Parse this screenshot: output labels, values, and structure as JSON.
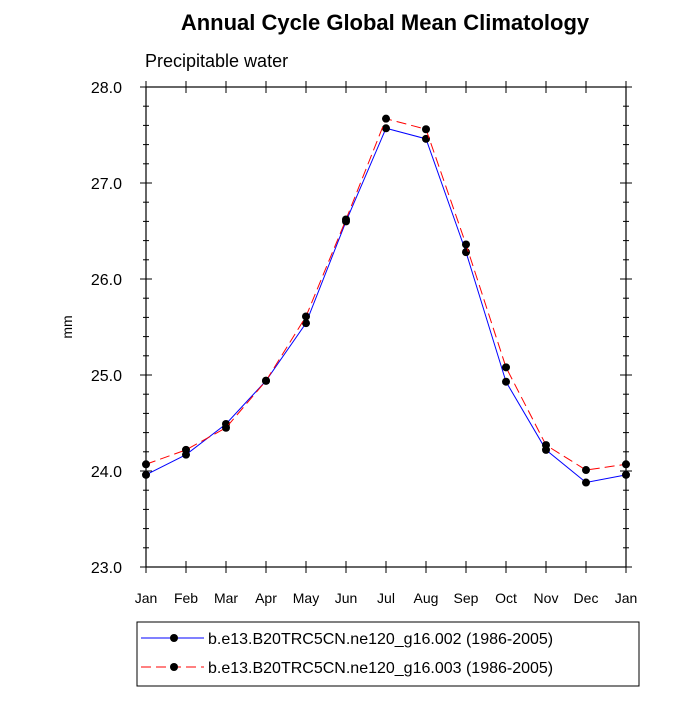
{
  "chart_data": {
    "type": "line",
    "title": "Annual Cycle Global Mean Climatology",
    "subtitle": "Precipitable water",
    "xlabel": "",
    "ylabel": "mm",
    "categories": [
      "Jan",
      "Feb",
      "Mar",
      "Apr",
      "May",
      "Jun",
      "Jul",
      "Aug",
      "Sep",
      "Oct",
      "Nov",
      "Dec",
      "Jan"
    ],
    "ylim": [
      23.0,
      28.0
    ],
    "yticks": [
      "23.0",
      "24.0",
      "25.0",
      "26.0",
      "27.0",
      "28.0"
    ],
    "grid": false,
    "legend_position": "bottom",
    "series": [
      {
        "name": "b.e13.B20TRC5CN.ne120_g16.002 (1986-2005)",
        "color": "#0000ff",
        "line_style": "solid",
        "values": [
          23.96,
          24.17,
          24.49,
          24.94,
          25.54,
          26.6,
          27.57,
          27.46,
          26.28,
          24.93,
          24.22,
          23.88,
          23.96
        ]
      },
      {
        "name": "b.e13.B20TRC5CN.ne120_g16.003 (1986-2005)",
        "color": "#ff0000",
        "line_style": "dashed",
        "values": [
          24.07,
          24.22,
          24.45,
          24.94,
          25.61,
          26.62,
          27.67,
          27.56,
          26.36,
          25.08,
          24.27,
          24.01,
          24.07
        ]
      }
    ]
  }
}
